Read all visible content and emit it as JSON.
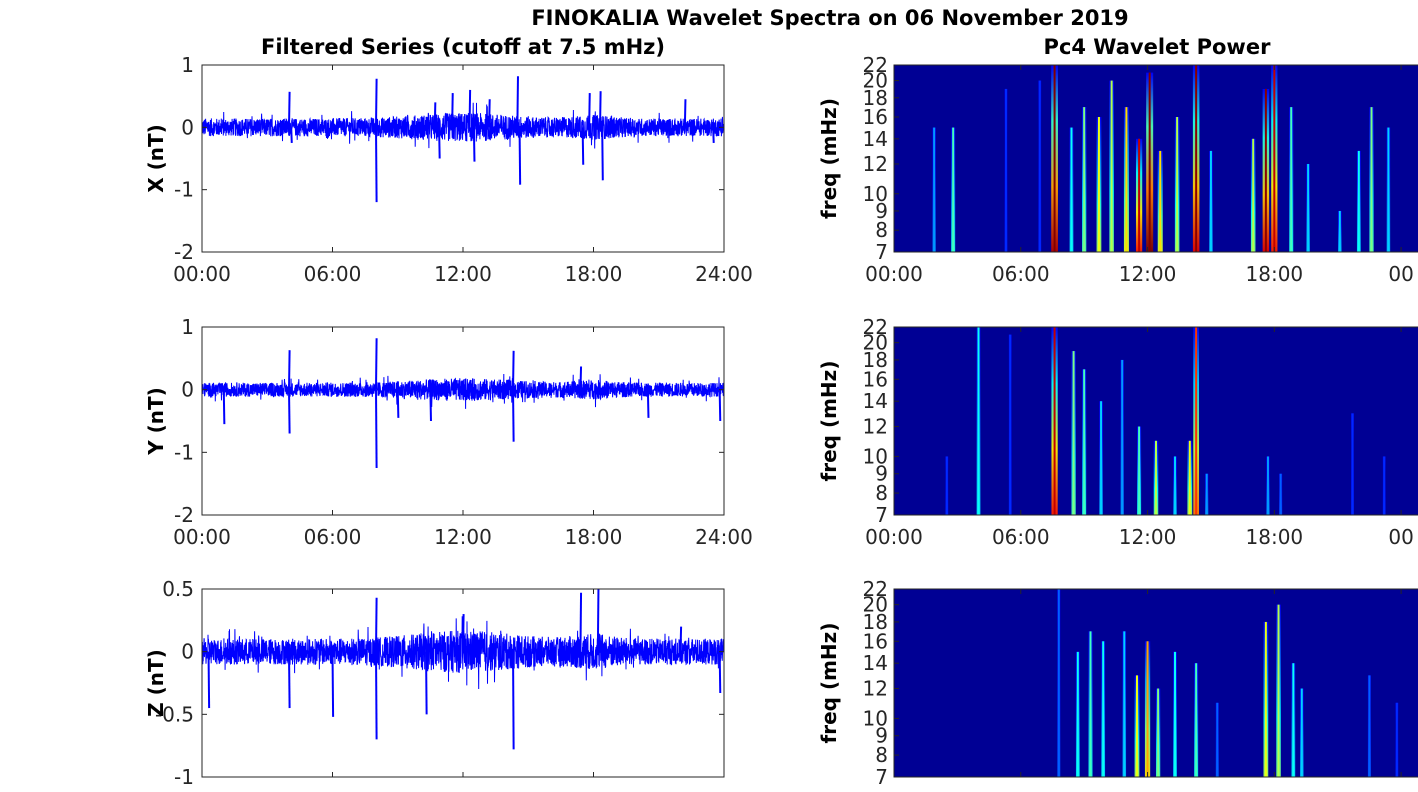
{
  "figure": {
    "suptitle": "FINOKALIA Wavelet Spectra on 06 November 2019",
    "left_title": "Filtered Series (cutoff at 7.5 mHz)",
    "right_title": "Pc4 Wavelet Power"
  },
  "chart_data": [
    {
      "type": "line",
      "panel": "X",
      "ylabel": "X (nT)",
      "color": "#0000ff",
      "ylim": [
        -2,
        1
      ],
      "yticks": [
        "1",
        "0",
        "-1",
        "-2"
      ],
      "yticks_values": [
        1,
        0,
        -1,
        -2
      ],
      "xticks": [
        "00:00",
        "06:00",
        "12:00",
        "18:00",
        "24:00"
      ],
      "xlim_hours": [
        0,
        24
      ],
      "noise_amplitude": 0.18,
      "spikes": [
        {
          "t": 4.0,
          "v": 0.57
        },
        {
          "t": 4.1,
          "v": -0.25
        },
        {
          "t": 8.0,
          "v": 0.78
        },
        {
          "t": 8.0,
          "v": -1.2
        },
        {
          "t": 10.7,
          "v": 0.4
        },
        {
          "t": 10.9,
          "v": -0.5
        },
        {
          "t": 11.5,
          "v": 0.55
        },
        {
          "t": 12.3,
          "v": 0.6
        },
        {
          "t": 12.5,
          "v": -0.55
        },
        {
          "t": 13.2,
          "v": 0.45
        },
        {
          "t": 14.5,
          "v": 0.82
        },
        {
          "t": 14.6,
          "v": -0.92
        },
        {
          "t": 17.8,
          "v": 0.55
        },
        {
          "t": 18.3,
          "v": 0.58
        },
        {
          "t": 18.4,
          "v": -0.85
        },
        {
          "t": 17.5,
          "v": -0.6
        },
        {
          "t": 22.2,
          "v": 0.45
        },
        {
          "t": 23.5,
          "v": -0.25
        }
      ]
    },
    {
      "type": "line",
      "panel": "Y",
      "ylabel": "Y (nT)",
      "color": "#0000ff",
      "ylim": [
        -2,
        1
      ],
      "yticks": [
        "1",
        "0",
        "-1",
        "-2"
      ],
      "yticks_values": [
        1,
        0,
        -1,
        -2
      ],
      "xticks": [
        "00:00",
        "06:00",
        "12:00",
        "18:00",
        "24:00"
      ],
      "xlim_hours": [
        0,
        24
      ],
      "noise_amplitude": 0.14,
      "spikes": [
        {
          "t": 4.0,
          "v": 0.63
        },
        {
          "t": 4.0,
          "v": -0.7
        },
        {
          "t": 8.0,
          "v": 0.82
        },
        {
          "t": 8.0,
          "v": -1.25
        },
        {
          "t": 9.0,
          "v": -0.45
        },
        {
          "t": 10.5,
          "v": -0.5
        },
        {
          "t": 14.3,
          "v": 0.62
        },
        {
          "t": 14.3,
          "v": -0.83
        },
        {
          "t": 17.4,
          "v": 0.37
        },
        {
          "t": 1.0,
          "v": -0.55
        },
        {
          "t": 20.5,
          "v": -0.45
        },
        {
          "t": 23.8,
          "v": -0.5
        }
      ]
    },
    {
      "type": "line",
      "panel": "Z",
      "ylabel": "Z (nT)",
      "color": "#0000ff",
      "ylim": [
        -1,
        0.5
      ],
      "yticks": [
        "0.5",
        "0",
        "-0.5",
        "-1"
      ],
      "yticks_values": [
        0.5,
        0,
        -0.5,
        -1
      ],
      "xticks": [],
      "xlim_hours": [
        0,
        24
      ],
      "noise_amplitude": 0.13,
      "spikes": [
        {
          "t": 8.0,
          "v": 0.43
        },
        {
          "t": 8.0,
          "v": -0.7
        },
        {
          "t": 4.0,
          "v": -0.45
        },
        {
          "t": 6.0,
          "v": -0.52
        },
        {
          "t": 12.0,
          "v": 0.3
        },
        {
          "t": 14.3,
          "v": -0.78
        },
        {
          "t": 17.4,
          "v": 0.47
        },
        {
          "t": 18.2,
          "v": 0.5
        },
        {
          "t": 22.0,
          "v": 0.2
        },
        {
          "t": 23.8,
          "v": -0.33
        },
        {
          "t": 0.3,
          "v": -0.45
        },
        {
          "t": 10.3,
          "v": -0.5
        }
      ]
    },
    {
      "type": "heatmap",
      "panel": "X wavelet",
      "ylabel": "freq (mHz)",
      "ylim_mHz": [
        7,
        22
      ],
      "yscale": "log",
      "yticks": [
        "22",
        "20",
        "18",
        "16",
        "14",
        "12",
        "10",
        "9",
        "8",
        "7"
      ],
      "yticks_values": [
        22,
        20,
        18,
        16,
        14,
        12,
        10,
        9,
        8,
        7
      ],
      "xticks": [
        "00:00",
        "06:00",
        "12:00",
        "18:00",
        "00"
      ],
      "xticks_hours": [
        0,
        6,
        12,
        18,
        24
      ],
      "xlim_hours": [
        0,
        24.8
      ],
      "colormap": "jet",
      "bursts": [
        {
          "t": 1.9,
          "fmax": 15,
          "p": 0.25
        },
        {
          "t": 2.8,
          "fmax": 15,
          "p": 0.4
        },
        {
          "t": 5.3,
          "fmax": 19,
          "p": 0.15
        },
        {
          "t": 6.9,
          "fmax": 20,
          "p": 0.15
        },
        {
          "t": 7.6,
          "fmax": 22,
          "p": 0.95
        },
        {
          "t": 8.4,
          "fmax": 15,
          "p": 0.35
        },
        {
          "t": 9.0,
          "fmax": 17,
          "p": 0.45
        },
        {
          "t": 9.7,
          "fmax": 16,
          "p": 0.55
        },
        {
          "t": 10.3,
          "fmax": 20,
          "p": 0.5
        },
        {
          "t": 11.0,
          "fmax": 17,
          "p": 0.6
        },
        {
          "t": 11.6,
          "fmax": 14,
          "p": 0.85
        },
        {
          "t": 12.1,
          "fmax": 21,
          "p": 1.0
        },
        {
          "t": 12.6,
          "fmax": 13,
          "p": 0.6
        },
        {
          "t": 13.4,
          "fmax": 16,
          "p": 0.5
        },
        {
          "t": 14.3,
          "fmax": 22,
          "p": 0.9
        },
        {
          "t": 15.0,
          "fmax": 13,
          "p": 0.3
        },
        {
          "t": 17.0,
          "fmax": 14,
          "p": 0.5
        },
        {
          "t": 17.6,
          "fmax": 19,
          "p": 0.9
        },
        {
          "t": 18.0,
          "fmax": 22,
          "p": 0.85
        },
        {
          "t": 18.8,
          "fmax": 17,
          "p": 0.4
        },
        {
          "t": 19.6,
          "fmax": 12,
          "p": 0.3
        },
        {
          "t": 21.1,
          "fmax": 9,
          "p": 0.3
        },
        {
          "t": 22.0,
          "fmax": 13,
          "p": 0.35
        },
        {
          "t": 22.6,
          "fmax": 17,
          "p": 0.45
        },
        {
          "t": 23.4,
          "fmax": 15,
          "p": 0.3
        }
      ]
    },
    {
      "type": "heatmap",
      "panel": "Y wavelet",
      "ylabel": "freq (mHz)",
      "ylim_mHz": [
        7,
        22
      ],
      "yscale": "log",
      "yticks": [
        "22",
        "20",
        "18",
        "16",
        "14",
        "12",
        "10",
        "9",
        "8",
        "7"
      ],
      "yticks_values": [
        22,
        20,
        18,
        16,
        14,
        12,
        10,
        9,
        8,
        7
      ],
      "xticks": [
        "00:00",
        "06:00",
        "12:00",
        "18:00",
        "00"
      ],
      "xticks_hours": [
        0,
        6,
        12,
        18,
        24
      ],
      "xlim_hours": [
        0,
        24.8
      ],
      "colormap": "jet",
      "bursts": [
        {
          "t": 2.5,
          "fmax": 10,
          "p": 0.15
        },
        {
          "t": 4.0,
          "fmax": 22,
          "p": 0.35
        },
        {
          "t": 5.5,
          "fmax": 21,
          "p": 0.15
        },
        {
          "t": 7.6,
          "fmax": 22,
          "p": 0.85
        },
        {
          "t": 8.5,
          "fmax": 19,
          "p": 0.45
        },
        {
          "t": 9.0,
          "fmax": 17,
          "p": 0.4
        },
        {
          "t": 9.8,
          "fmax": 14,
          "p": 0.3
        },
        {
          "t": 10.8,
          "fmax": 18,
          "p": 0.25
        },
        {
          "t": 11.6,
          "fmax": 12,
          "p": 0.4
        },
        {
          "t": 12.4,
          "fmax": 11,
          "p": 0.5
        },
        {
          "t": 13.3,
          "fmax": 10,
          "p": 0.3
        },
        {
          "t": 14.0,
          "fmax": 11,
          "p": 0.55
        },
        {
          "t": 14.3,
          "fmax": 22,
          "p": 0.75
        },
        {
          "t": 14.8,
          "fmax": 9,
          "p": 0.25
        },
        {
          "t": 17.7,
          "fmax": 10,
          "p": 0.25
        },
        {
          "t": 18.3,
          "fmax": 9,
          "p": 0.2
        },
        {
          "t": 21.7,
          "fmax": 13,
          "p": 0.15
        },
        {
          "t": 23.2,
          "fmax": 10,
          "p": 0.15
        }
      ]
    },
    {
      "type": "heatmap",
      "panel": "Z wavelet",
      "ylabel": "freq (mHz)",
      "ylim_mHz": [
        7,
        22
      ],
      "yscale": "log",
      "yticks": [
        "22",
        "20",
        "18",
        "16",
        "14",
        "12",
        "10",
        "9",
        "8",
        "7"
      ],
      "yticks_values": [
        22,
        20,
        18,
        16,
        14,
        12,
        10,
        9,
        8,
        7
      ],
      "xticks": [],
      "xticks_hours": [],
      "xlim_hours": [
        0,
        24.8
      ],
      "colormap": "jet",
      "bursts": [
        {
          "t": 7.8,
          "fmax": 22,
          "p": 0.2
        },
        {
          "t": 8.7,
          "fmax": 15,
          "p": 0.35
        },
        {
          "t": 9.3,
          "fmax": 17,
          "p": 0.4
        },
        {
          "t": 9.9,
          "fmax": 16,
          "p": 0.35
        },
        {
          "t": 10.9,
          "fmax": 17,
          "p": 0.3
        },
        {
          "t": 11.5,
          "fmax": 13,
          "p": 0.55
        },
        {
          "t": 12.0,
          "fmax": 16,
          "p": 0.65
        },
        {
          "t": 12.5,
          "fmax": 12,
          "p": 0.45
        },
        {
          "t": 13.3,
          "fmax": 15,
          "p": 0.35
        },
        {
          "t": 14.3,
          "fmax": 14,
          "p": 0.4
        },
        {
          "t": 15.3,
          "fmax": 11,
          "p": 0.2
        },
        {
          "t": 17.6,
          "fmax": 18,
          "p": 0.55
        },
        {
          "t": 18.2,
          "fmax": 20,
          "p": 0.5
        },
        {
          "t": 18.9,
          "fmax": 14,
          "p": 0.35
        },
        {
          "t": 19.3,
          "fmax": 12,
          "p": 0.3
        },
        {
          "t": 22.5,
          "fmax": 13,
          "p": 0.2
        },
        {
          "t": 23.8,
          "fmax": 11,
          "p": 0.15
        }
      ]
    }
  ]
}
